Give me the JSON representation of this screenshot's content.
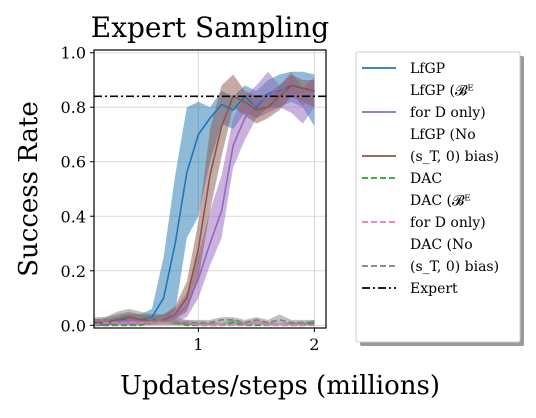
{
  "chart_data": {
    "type": "line",
    "title": "Expert Sampling",
    "xlabel": "Updates/steps (millions)",
    "ylabel": "Success Rate",
    "xlim": [
      0.1,
      2.1
    ],
    "ylim": [
      -0.01,
      1.01
    ],
    "xticks": [
      {
        "value": 1,
        "label": "1"
      },
      {
        "value": 2,
        "label": "2"
      }
    ],
    "yticks": [
      {
        "value": 0.0,
        "label": "0.0"
      },
      {
        "value": 0.2,
        "label": "0.2"
      },
      {
        "value": 0.4,
        "label": "0.4"
      },
      {
        "value": 0.6,
        "label": "0.6"
      },
      {
        "value": 0.8,
        "label": "0.8"
      },
      {
        "value": 1.0,
        "label": "1.0"
      }
    ],
    "grid": true,
    "legend_position": "outside-right",
    "x": [
      0.1,
      0.2,
      0.3,
      0.4,
      0.5,
      0.6,
      0.7,
      0.8,
      0.9,
      1.0,
      1.1,
      1.2,
      1.3,
      1.4,
      1.5,
      1.6,
      1.7,
      1.8,
      1.9,
      2.0
    ],
    "series": [
      {
        "name": "LfGP",
        "color": "#1f77b4",
        "dash": "solid",
        "mean": [
          0.0,
          0.01,
          0.02,
          0.02,
          0.02,
          0.03,
          0.1,
          0.3,
          0.56,
          0.7,
          0.76,
          0.81,
          0.79,
          0.84,
          0.8,
          0.85,
          0.86,
          0.88,
          0.87,
          0.86
        ],
        "lower": [
          0.0,
          0.0,
          0.01,
          0.0,
          0.0,
          0.01,
          0.02,
          0.05,
          0.32,
          0.4,
          0.6,
          0.74,
          0.72,
          0.78,
          0.76,
          0.8,
          0.8,
          0.82,
          0.8,
          0.73
        ],
        "upper": [
          0.01,
          0.02,
          0.03,
          0.04,
          0.04,
          0.06,
          0.25,
          0.55,
          0.8,
          0.82,
          0.8,
          0.86,
          0.84,
          0.88,
          0.86,
          0.9,
          0.92,
          0.93,
          0.93,
          0.92
        ]
      },
      {
        "name_lines": [
          "LfGP (𝓑ᴱ",
          "for D only)"
        ],
        "color": "#9467bd",
        "dash": "solid",
        "mean": [
          0.0,
          0.0,
          0.01,
          0.02,
          0.02,
          0.02,
          0.02,
          0.03,
          0.07,
          0.17,
          0.3,
          0.42,
          0.66,
          0.76,
          0.82,
          0.84,
          0.87,
          0.86,
          0.81,
          0.86
        ],
        "lower": [
          0.0,
          0.0,
          0.0,
          0.0,
          0.0,
          0.0,
          0.01,
          0.01,
          0.03,
          0.1,
          0.22,
          0.32,
          0.58,
          0.68,
          0.76,
          0.78,
          0.8,
          0.78,
          0.74,
          0.8
        ],
        "upper": [
          0.02,
          0.02,
          0.03,
          0.04,
          0.04,
          0.03,
          0.04,
          0.06,
          0.12,
          0.26,
          0.42,
          0.55,
          0.76,
          0.84,
          0.88,
          0.93,
          0.88,
          0.93,
          0.87,
          0.91
        ]
      },
      {
        "name_lines": [
          "LfGP (No",
          "(s_T, 0) bias)"
        ],
        "color": "#8c564b",
        "dash": "solid",
        "mean": [
          0.01,
          0.01,
          0.02,
          0.03,
          0.02,
          0.02,
          0.02,
          0.04,
          0.1,
          0.28,
          0.55,
          0.73,
          0.84,
          0.82,
          0.79,
          0.8,
          0.84,
          0.88,
          0.87,
          0.86
        ],
        "lower": [
          0.0,
          0.0,
          0.01,
          0.01,
          0.01,
          0.01,
          0.01,
          0.02,
          0.05,
          0.17,
          0.42,
          0.62,
          0.8,
          0.77,
          0.74,
          0.76,
          0.79,
          0.84,
          0.82,
          0.8
        ],
        "upper": [
          0.02,
          0.03,
          0.04,
          0.05,
          0.04,
          0.04,
          0.04,
          0.07,
          0.16,
          0.38,
          0.72,
          0.88,
          0.92,
          0.86,
          0.84,
          0.85,
          0.88,
          0.92,
          0.9,
          0.9
        ]
      },
      {
        "name": "DAC",
        "color": "#2ca02c",
        "dash": "dashed",
        "mean": [
          0.0,
          0.0,
          0.0,
          0.0,
          0.0,
          0.01,
          0.01,
          0.01,
          0.0,
          0.0,
          0.0,
          0.0,
          0.01,
          0.0,
          0.0,
          0.0,
          0.0,
          0.0,
          0.0,
          0.01
        ],
        "lower": [
          0.0,
          0.0,
          0.0,
          0.0,
          0.0,
          0.0,
          0.0,
          0.0,
          0.0,
          0.0,
          0.0,
          0.0,
          0.0,
          0.0,
          0.0,
          0.0,
          0.0,
          0.0,
          0.0,
          0.0
        ],
        "upper": [
          0.0,
          0.01,
          0.01,
          0.01,
          0.01,
          0.02,
          0.02,
          0.02,
          0.01,
          0.01,
          0.01,
          0.01,
          0.02,
          0.01,
          0.01,
          0.01,
          0.01,
          0.01,
          0.01,
          0.02
        ]
      },
      {
        "name_lines": [
          "DAC (𝓑ᴱ",
          "for D only)"
        ],
        "color": "#e377c2",
        "dash": "dashed",
        "mean": [
          0.0,
          0.01,
          0.01,
          0.01,
          0.01,
          0.01,
          0.01,
          0.01,
          0.01,
          0.0,
          0.0,
          0.0,
          0.0,
          0.0,
          0.01,
          0.0,
          0.0,
          0.0,
          0.0,
          0.0
        ],
        "lower": [
          0.0,
          0.0,
          0.0,
          0.0,
          0.0,
          0.0,
          0.0,
          0.0,
          0.0,
          0.0,
          0.0,
          0.0,
          0.0,
          0.0,
          0.0,
          0.0,
          0.0,
          0.0,
          0.0,
          0.0
        ],
        "upper": [
          0.01,
          0.02,
          0.02,
          0.02,
          0.02,
          0.02,
          0.02,
          0.02,
          0.02,
          0.01,
          0.01,
          0.01,
          0.01,
          0.01,
          0.02,
          0.01,
          0.01,
          0.01,
          0.01,
          0.01
        ]
      },
      {
        "name_lines": [
          "DAC (No",
          "(s_T, 0) bias)"
        ],
        "color": "#7f7f7f",
        "dash": "dashed",
        "mean": [
          0.02,
          0.02,
          0.03,
          0.04,
          0.03,
          0.02,
          0.02,
          0.01,
          0.01,
          0.01,
          0.01,
          0.02,
          0.02,
          0.01,
          0.02,
          0.01,
          0.02,
          0.01,
          0.01,
          0.01
        ],
        "lower": [
          0.0,
          0.0,
          0.01,
          0.02,
          0.01,
          0.01,
          0.01,
          0.0,
          0.0,
          0.0,
          0.0,
          0.01,
          0.01,
          0.0,
          0.01,
          0.0,
          0.01,
          0.0,
          0.0,
          0.0
        ],
        "upper": [
          0.03,
          0.03,
          0.05,
          0.06,
          0.05,
          0.04,
          0.04,
          0.03,
          0.02,
          0.02,
          0.02,
          0.03,
          0.03,
          0.02,
          0.03,
          0.02,
          0.04,
          0.02,
          0.02,
          0.02
        ]
      }
    ],
    "reference_lines": [
      {
        "name": "Expert",
        "y": 0.84,
        "color": "#000000",
        "dash": "dashdot"
      }
    ]
  }
}
